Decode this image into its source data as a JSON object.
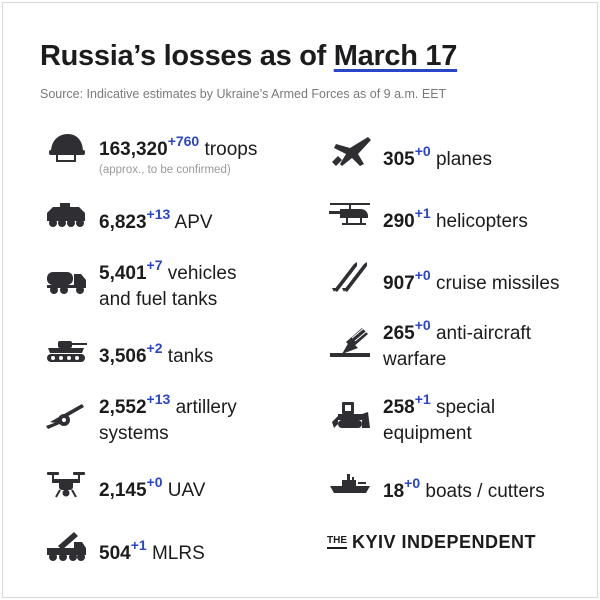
{
  "title": {
    "prefix": "Russia’s losses  as of ",
    "date": "March 17"
  },
  "source": "Source: Indicative estimates by Ukraine’s Armed Forces as of 9 a.m. EET",
  "stats": {
    "troops": {
      "num": "163,320",
      "delta": "+760",
      "label": "troops",
      "note": "(approx., to be confirmed)",
      "icon": "helmet-icon"
    },
    "apv": {
      "num": "6,823",
      "delta": "+13",
      "label": "APV",
      "icon": "armored-vehicle-icon"
    },
    "vehicles": {
      "num": "5,401",
      "delta": "+7",
      "label": "vehicles",
      "label2": "and fuel tanks",
      "icon": "fuel-truck-icon"
    },
    "tanks": {
      "num": "3,506",
      "delta": "+2",
      "label": "tanks",
      "icon": "tank-icon"
    },
    "artillery": {
      "num": "2,552",
      "delta": "+13",
      "label": "artillery",
      "label2": "systems",
      "icon": "artillery-icon"
    },
    "uav": {
      "num": "2,145",
      "delta": "+0",
      "label": "UAV",
      "icon": "drone-icon"
    },
    "mlrs": {
      "num": "504",
      "delta": "+1",
      "label": "MLRS",
      "icon": "mlrs-icon"
    },
    "planes": {
      "num": "305",
      "delta": "+0",
      "label": "planes",
      "icon": "jet-icon"
    },
    "helicopters": {
      "num": "290",
      "delta": "+1",
      "label": "helicopters",
      "icon": "helicopter-icon"
    },
    "cruise": {
      "num": "907",
      "delta": "+0",
      "label": "cruise missiles",
      "icon": "missiles-icon"
    },
    "antiair": {
      "num": "265",
      "delta": "+0",
      "label": "anti-aircraft",
      "label2": "warfare",
      "icon": "anti-aircraft-icon"
    },
    "special": {
      "num": "258",
      "delta": "+1",
      "label": "special",
      "label2": "equipment",
      "icon": "bulldozer-icon"
    },
    "boats": {
      "num": "18",
      "delta": "+0",
      "label": "boats / cutters",
      "icon": "warship-icon"
    }
  },
  "logo": {
    "the": "THE",
    "name": "KYIV INDEPENDENT"
  },
  "colors": {
    "accent": "#2a46c8",
    "text": "#1c1c1e",
    "icon": "#2f2f33"
  }
}
